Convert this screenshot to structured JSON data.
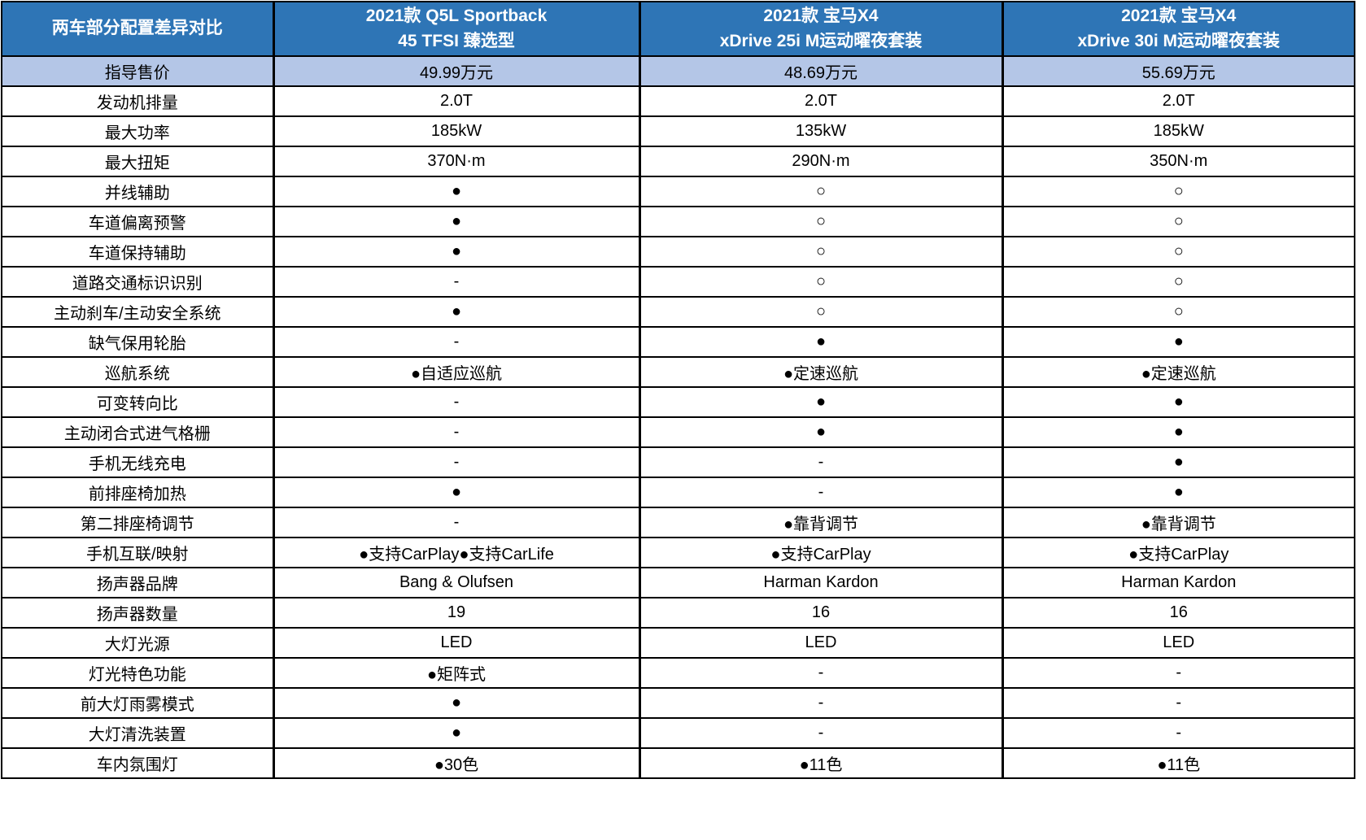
{
  "chart_data": {
    "type": "table",
    "title_cell": "两车部分配置差异对比",
    "columns": [
      {
        "line1": "2021款 Q5L Sportback",
        "line2": "45 TFSI 臻选型"
      },
      {
        "line1": "2021款 宝马X4",
        "line2": "xDrive 25i M运动曜夜套装"
      },
      {
        "line1": "2021款 宝马X4",
        "line2": "xDrive 30i M运动曜夜套装"
      }
    ],
    "legend": {
      "filled_circle": "●",
      "hollow_circle": "○",
      "not_available": "-"
    },
    "rows": [
      {
        "label": "指导售价",
        "values": [
          "49.99万元",
          "48.69万元",
          "55.69万元"
        ],
        "highlight": true
      },
      {
        "label": "发动机排量",
        "values": [
          "2.0T",
          "2.0T",
          "2.0T"
        ],
        "highlight": false
      },
      {
        "label": "最大功率",
        "values": [
          "185kW",
          "135kW",
          "185kW"
        ],
        "highlight": false
      },
      {
        "label": "最大扭矩",
        "values": [
          "370N·m",
          "290N·m",
          "350N·m"
        ],
        "highlight": false
      },
      {
        "label": "并线辅助",
        "values": [
          "●",
          "○",
          "○"
        ],
        "highlight": false
      },
      {
        "label": "车道偏离预警",
        "values": [
          "●",
          "○",
          "○"
        ],
        "highlight": false
      },
      {
        "label": "车道保持辅助",
        "values": [
          "●",
          "○",
          "○"
        ],
        "highlight": false
      },
      {
        "label": "道路交通标识识别",
        "values": [
          "-",
          "○",
          "○"
        ],
        "highlight": false
      },
      {
        "label": "主动刹车/主动安全系统",
        "values": [
          "●",
          "○",
          "○"
        ],
        "highlight": false
      },
      {
        "label": "缺气保用轮胎",
        "values": [
          "-",
          "●",
          "●"
        ],
        "highlight": false
      },
      {
        "label": "巡航系统",
        "values": [
          "●自适应巡航",
          "●定速巡航",
          "●定速巡航"
        ],
        "highlight": false
      },
      {
        "label": "可变转向比",
        "values": [
          "-",
          "●",
          "●"
        ],
        "highlight": false
      },
      {
        "label": "主动闭合式进气格栅",
        "values": [
          "-",
          "●",
          "●"
        ],
        "highlight": false
      },
      {
        "label": "手机无线充电",
        "values": [
          "-",
          "-",
          "●"
        ],
        "highlight": false
      },
      {
        "label": "前排座椅加热",
        "values": [
          "●",
          "-",
          "●"
        ],
        "highlight": false
      },
      {
        "label": "第二排座椅调节",
        "values": [
          "-",
          "●靠背调节",
          "●靠背调节"
        ],
        "highlight": false
      },
      {
        "label": "手机互联/映射",
        "values": [
          "●支持CarPlay●支持CarLife",
          "●支持CarPlay",
          "●支持CarPlay"
        ],
        "highlight": false
      },
      {
        "label": "扬声器品牌",
        "values": [
          "Bang & Olufsen",
          "Harman Kardon",
          "Harman Kardon"
        ],
        "highlight": false
      },
      {
        "label": "扬声器数量",
        "values": [
          "19",
          "16",
          "16"
        ],
        "highlight": false
      },
      {
        "label": "大灯光源",
        "values": [
          "LED",
          "LED",
          "LED"
        ],
        "highlight": false
      },
      {
        "label": "灯光特色功能",
        "values": [
          "●矩阵式",
          "-",
          "-"
        ],
        "highlight": false
      },
      {
        "label": "前大灯雨雾模式",
        "values": [
          "●",
          "-",
          "-"
        ],
        "highlight": false
      },
      {
        "label": "大灯清洗装置",
        "values": [
          "●",
          "-",
          "-"
        ],
        "highlight": false
      },
      {
        "label": "车内氛围灯",
        "values": [
          "●30色",
          "●11色",
          "●11色"
        ],
        "highlight": false
      }
    ],
    "colors": {
      "header_bg": "#2E75B6",
      "header_text": "#FFFFFF",
      "highlight_row_bg": "#B4C6E7",
      "border": "#000000",
      "body_bg": "#FFFFFF"
    }
  }
}
